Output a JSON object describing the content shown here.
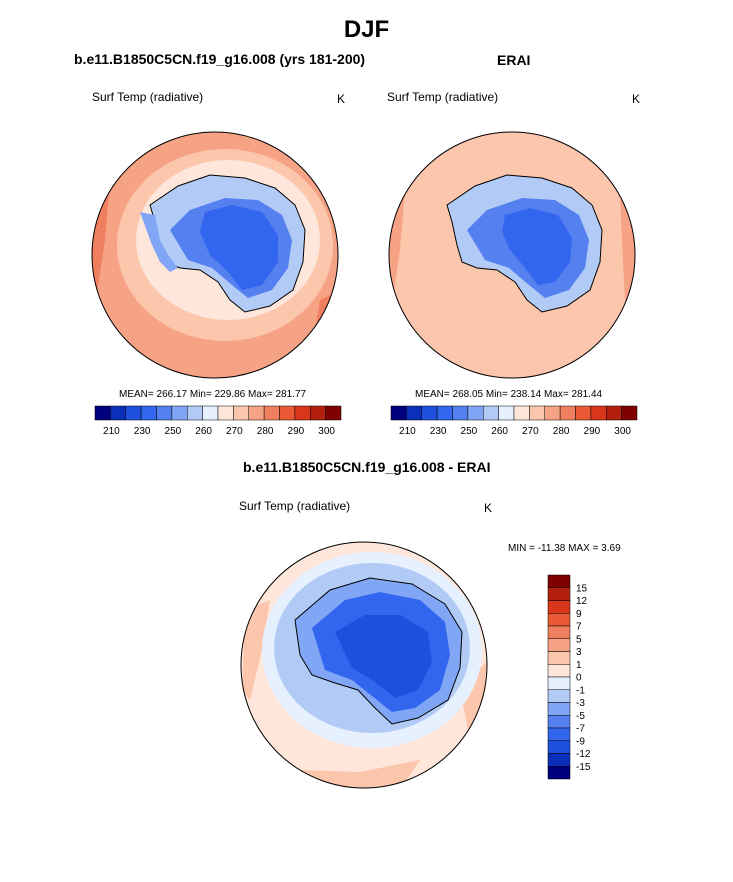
{
  "figure": {
    "title": "DJF"
  },
  "colors": {
    "abs_scale": [
      "#00007f",
      "#0a2fb8",
      "#1f4fdd",
      "#3366ee",
      "#5580f0",
      "#80a6f5",
      "#b2cbf6",
      "#e6f0ff",
      "#ffe6da",
      "#fcc6ad",
      "#f6a285",
      "#f07f60",
      "#ea5a36",
      "#d9361b",
      "#b3200e",
      "#800000"
    ],
    "diff_scale": [
      "#00007f",
      "#0a2fb8",
      "#1f4fdd",
      "#3366ee",
      "#5580f0",
      "#80a6f5",
      "#b2cbf6",
      "#e6f0ff",
      "#ffe6da",
      "#fcc6ad",
      "#f6a285",
      "#f07f60",
      "#ea5a36",
      "#d9361b",
      "#b3200e",
      "#800000"
    ]
  },
  "chart_data": [
    {
      "type": "heatmap",
      "projection": "south polar stereographic",
      "title": "b.e11.B1850C5CN.f19_g16.008 (yrs 181-200)",
      "variable": "Surf Temp (radiative)",
      "units": "K",
      "stats_label": "MEAN= 266.17  Min= 229.86  Max= 281.77",
      "mean": 266.17,
      "min": 229.86,
      "max": 281.77,
      "colorbar": {
        "orientation": "horizontal",
        "tick_labels": [
          "210",
          "230",
          "250",
          "260",
          "270",
          "280",
          "290",
          "300"
        ]
      }
    },
    {
      "type": "heatmap",
      "projection": "south polar stereographic",
      "title": "ERAI",
      "variable": "Surf Temp (radiative)",
      "units": "K",
      "stats_label": "MEAN= 268.05  Min= 238.14  Max= 281.44",
      "mean": 268.05,
      "min": 238.14,
      "max": 281.44,
      "colorbar": {
        "orientation": "horizontal",
        "tick_labels": [
          "210",
          "230",
          "250",
          "260",
          "270",
          "280",
          "290",
          "300"
        ]
      }
    },
    {
      "type": "heatmap",
      "projection": "south polar stereographic",
      "title": "b.e11.B1850C5CN.f19_g16.008 - ERAI",
      "variable": "Surf Temp (radiative)",
      "units": "K",
      "stats_label": "MIN = -11.38 MAX =   3.69",
      "min": -11.38,
      "max": 3.69,
      "colorbar": {
        "orientation": "vertical",
        "tick_labels": [
          "15",
          "12",
          "9",
          "7",
          "5",
          "3",
          "1",
          "0",
          "-1",
          "-3",
          "-5",
          "-7",
          "-9",
          "-12",
          "-15"
        ]
      }
    }
  ]
}
